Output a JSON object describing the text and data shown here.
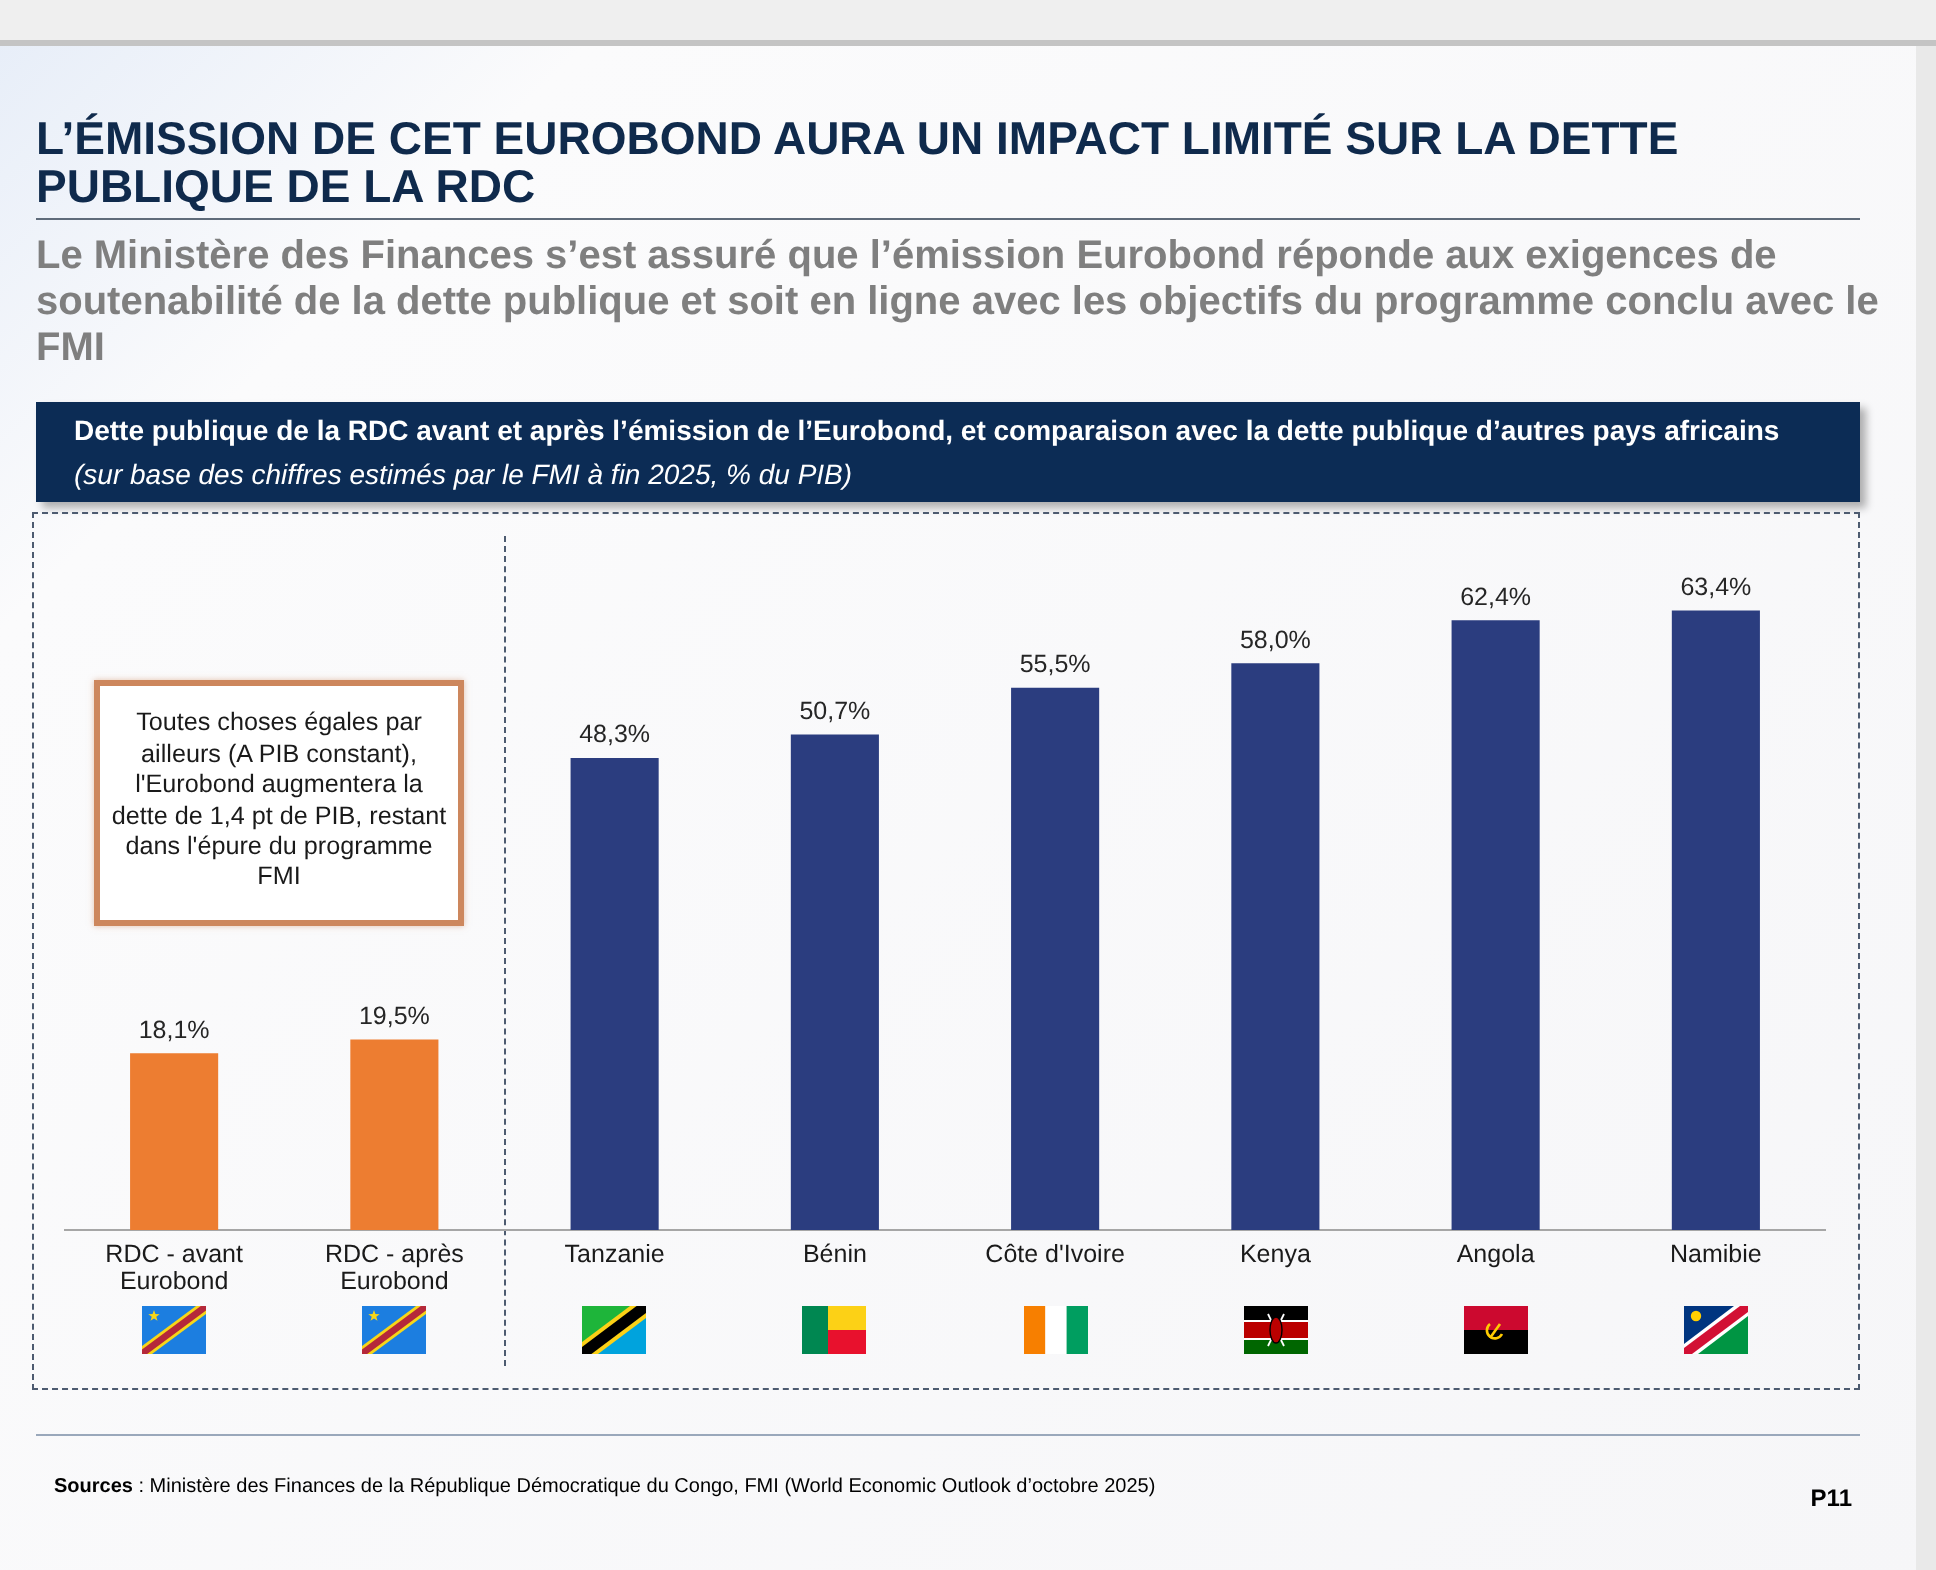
{
  "chart_data": {
    "type": "bar",
    "title": "L’ÉMISSION DE CET EUROBOND AURA UN IMPACT LIMITÉ SUR LA DETTE PUBLIQUE DE LA RDC",
    "subtitle": "Le Ministère des Finances s’est assuré que l’émission Eurobond réponde aux exigences de soutenabilité de la dette publique et soit en ligne avec les objectifs du programme conclu avec le FMI",
    "categories": [
      "RDC - avant Eurobond",
      "RDC - après Eurobond",
      "Tanzanie",
      "Bénin",
      "Côte d'Ivoire",
      "Kenya",
      "Angola",
      "Namibie"
    ],
    "values": [
      18.1,
      19.5,
      48.3,
      50.7,
      55.5,
      58.0,
      62.4,
      63.4
    ],
    "colors": [
      "#ed7d31",
      "#ed7d31",
      "#2b3d7f",
      "#2b3d7f",
      "#2b3d7f",
      "#2b3d7f",
      "#2b3d7f",
      "#2b3d7f"
    ],
    "value_labels": [
      "18,1%",
      "19,5%",
      "48,3%",
      "50,7%",
      "55,5%",
      "58,0%",
      "62,4%",
      "63,4%"
    ],
    "tick_labels": "x",
    "annotations": [
      "Dette publique de la RDC avant et après l’émission de l’Eurobond, et comparaison avec la dette publique d’autres pays africains",
      "(sur base des chiffres estimés par le FMI à fin 2025, % du PIB)",
      "Toutes choses égales par ailleurs (A PIB constant), l'Eurobond augmentera la dette de 1,4 pt de PIB, restant dans l'épure du programme FMI",
      "Sources : Ministère des Finances de la République Démocratique du Congo, FMI (World Economic Outlook d’octobre 2025)",
      "P11"
    ]
  }
}
